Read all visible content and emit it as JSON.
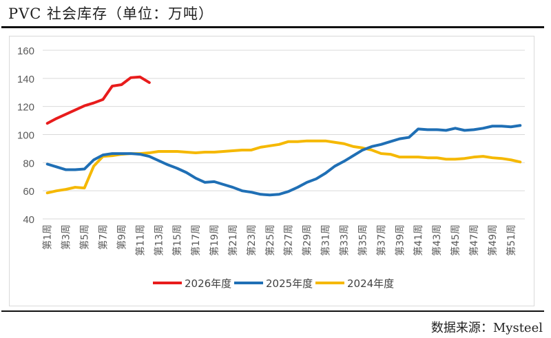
{
  "title": "PVC 社会库存（单位：万吨）",
  "source": "数据来源：Mysteel",
  "chart_data": {
    "type": "line",
    "title": "PVC 社会库存（单位：万吨）",
    "ylabel": "万吨",
    "ylim": [
      40,
      160
    ],
    "yticks": [
      40,
      60,
      80,
      100,
      120,
      140,
      160
    ],
    "grid": true,
    "legend_position": "bottom",
    "categories_count": 52,
    "category_label_format": "第{n}周",
    "series": [
      {
        "name": "2026年度",
        "color": "#e81c1c",
        "values": [
          108,
          111.5,
          114.5,
          117.5,
          120.5,
          122.5,
          125,
          134.5,
          135.5,
          140.5,
          141,
          137
        ]
      },
      {
        "name": "2025年度",
        "color": "#1f6fb5",
        "values": [
          79,
          77,
          75,
          75,
          75.5,
          82,
          85.5,
          86.5,
          86.5,
          86.5,
          86,
          84.5,
          81.5,
          78.5,
          76,
          73,
          69,
          66,
          66.5,
          64.5,
          62.5,
          60,
          59,
          57.5,
          57,
          57.5,
          59.5,
          62.5,
          66,
          68.5,
          72.5,
          77.5,
          81,
          85,
          89,
          91.5,
          93,
          95,
          97,
          98,
          104,
          103.5,
          103.5,
          103,
          104.5,
          103,
          103.5,
          104.5,
          106,
          106,
          105.5,
          106.5
        ]
      },
      {
        "name": "2024年度",
        "color": "#f5b800",
        "values": [
          58.5,
          60,
          61,
          62.5,
          62,
          77.5,
          84.5,
          85,
          86,
          86.5,
          86.5,
          87,
          88,
          88,
          88,
          87.5,
          87,
          87.5,
          87.5,
          88,
          88.5,
          89,
          89,
          91,
          92,
          93,
          95,
          95,
          95.5,
          95.5,
          95.5,
          94.5,
          93.5,
          91.5,
          90.5,
          89,
          86.5,
          86,
          84,
          84,
          84,
          83.5,
          83.5,
          82.5,
          82.5,
          83,
          84,
          84.5,
          83.5,
          83,
          82,
          80.5
        ]
      }
    ]
  }
}
